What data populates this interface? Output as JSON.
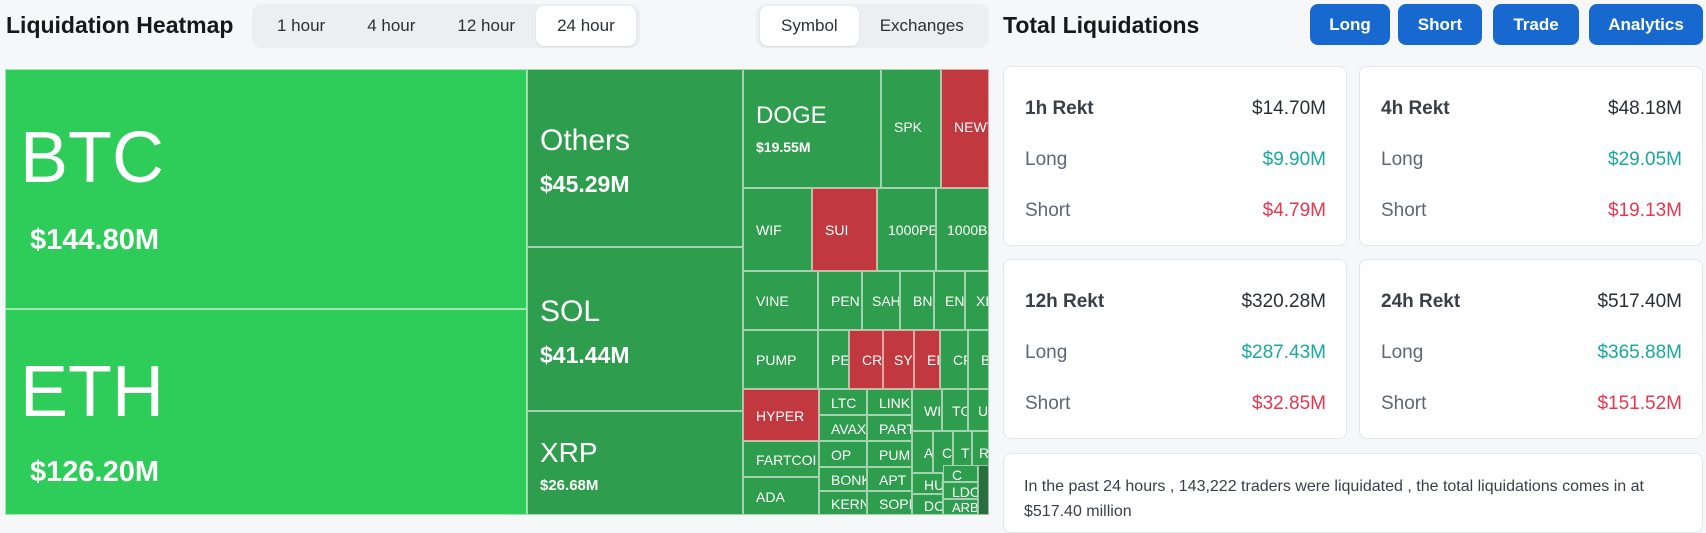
{
  "heatmap": {
    "title": "Liquidation Heatmap",
    "time_options": [
      "1 hour",
      "4 hour",
      "12 hour",
      "24 hour"
    ],
    "time_selected": "24 hour",
    "view_options": [
      "Symbol",
      "Exchanges"
    ],
    "view_selected": "Symbol",
    "tiles": {
      "btc": {
        "symbol": "BTC",
        "amount": "$144.80M"
      },
      "eth": {
        "symbol": "ETH",
        "amount": "$126.20M"
      },
      "others": {
        "symbol": "Others",
        "amount": "$45.29M"
      },
      "sol": {
        "symbol": "SOL",
        "amount": "$41.44M"
      },
      "xrp": {
        "symbol": "XRP",
        "amount": "$26.68M"
      },
      "doge": {
        "symbol": "DOGE",
        "amount": "$19.55M"
      },
      "spk": {
        "symbol": "SPK"
      },
      "newt": {
        "symbol": "NEWT"
      },
      "wif": {
        "symbol": "WIF"
      },
      "sui": {
        "symbol": "SUI"
      },
      "pepe1000": {
        "symbol": "1000PE"
      },
      "bonk1000": {
        "symbol": "1000BO"
      },
      "vine": {
        "symbol": "VINE"
      },
      "pen1": {
        "symbol": "PEN"
      },
      "sah": {
        "symbol": "SAH"
      },
      "bn": {
        "symbol": "BN"
      },
      "en": {
        "symbol": "EN"
      },
      "xl": {
        "symbol": "XL"
      },
      "pump": {
        "symbol": "PUMP"
      },
      "pe2": {
        "symbol": "PE"
      },
      "cr": {
        "symbol": "CR"
      },
      "sy": {
        "symbol": "SY"
      },
      "ef": {
        "symbol": "EF"
      },
      "cr2": {
        "symbol": "CF"
      },
      "ba": {
        "symbol": "BA"
      },
      "hyper": {
        "symbol": "HYPER"
      },
      "ltc": {
        "symbol": "LTC"
      },
      "link": {
        "symbol": "LINK"
      },
      "wi": {
        "symbol": "WI"
      },
      "tc": {
        "symbol": "TC"
      },
      "ur": {
        "symbol": "UI"
      },
      "avax": {
        "symbol": "AVAX"
      },
      "part": {
        "symbol": "PART"
      },
      "fartcoin": {
        "symbol": "FARTCOI"
      },
      "op": {
        "symbol": "OP"
      },
      "pum2": {
        "symbol": "PUM"
      },
      "a": {
        "symbol": "A"
      },
      "c": {
        "symbol": "C"
      },
      "t": {
        "symbol": "T"
      },
      "r": {
        "symbol": "R"
      },
      "bonk": {
        "symbol": "BONK"
      },
      "apt": {
        "symbol": "APT"
      },
      "hu": {
        "symbol": "HU"
      },
      "c2": {
        "symbol": "C"
      },
      "ada": {
        "symbol": "ADA"
      },
      "kern": {
        "symbol": "KERN"
      },
      "sopi": {
        "symbol": "SOPI"
      },
      "dc": {
        "symbol": "DC"
      },
      "ldo": {
        "symbol": "LDO"
      },
      "arb": {
        "symbol": "ARB"
      }
    }
  },
  "totals": {
    "title": "Total Liquidations",
    "buttons": {
      "long": "Long",
      "short": "Short",
      "trade": "Trade",
      "analytics": "Analytics"
    },
    "cards": [
      {
        "label": "1h Rekt",
        "total": "$14.70M",
        "long_label": "Long",
        "long": "$9.90M",
        "short_label": "Short",
        "short": "$4.79M"
      },
      {
        "label": "4h Rekt",
        "total": "$48.18M",
        "long_label": "Long",
        "long": "$29.05M",
        "short_label": "Short",
        "short": "$19.13M"
      },
      {
        "label": "12h Rekt",
        "total": "$320.28M",
        "long_label": "Long",
        "long": "$287.43M",
        "short_label": "Short",
        "short": "$32.85M"
      },
      {
        "label": "24h Rekt",
        "total": "$517.40M",
        "long_label": "Long",
        "long": "$365.88M",
        "short_label": "Short",
        "short": "$151.52M"
      }
    ],
    "summary": "In the past 24 hours , 143,222 traders were liquidated , the total liquidations comes in at $517.40 million"
  }
}
